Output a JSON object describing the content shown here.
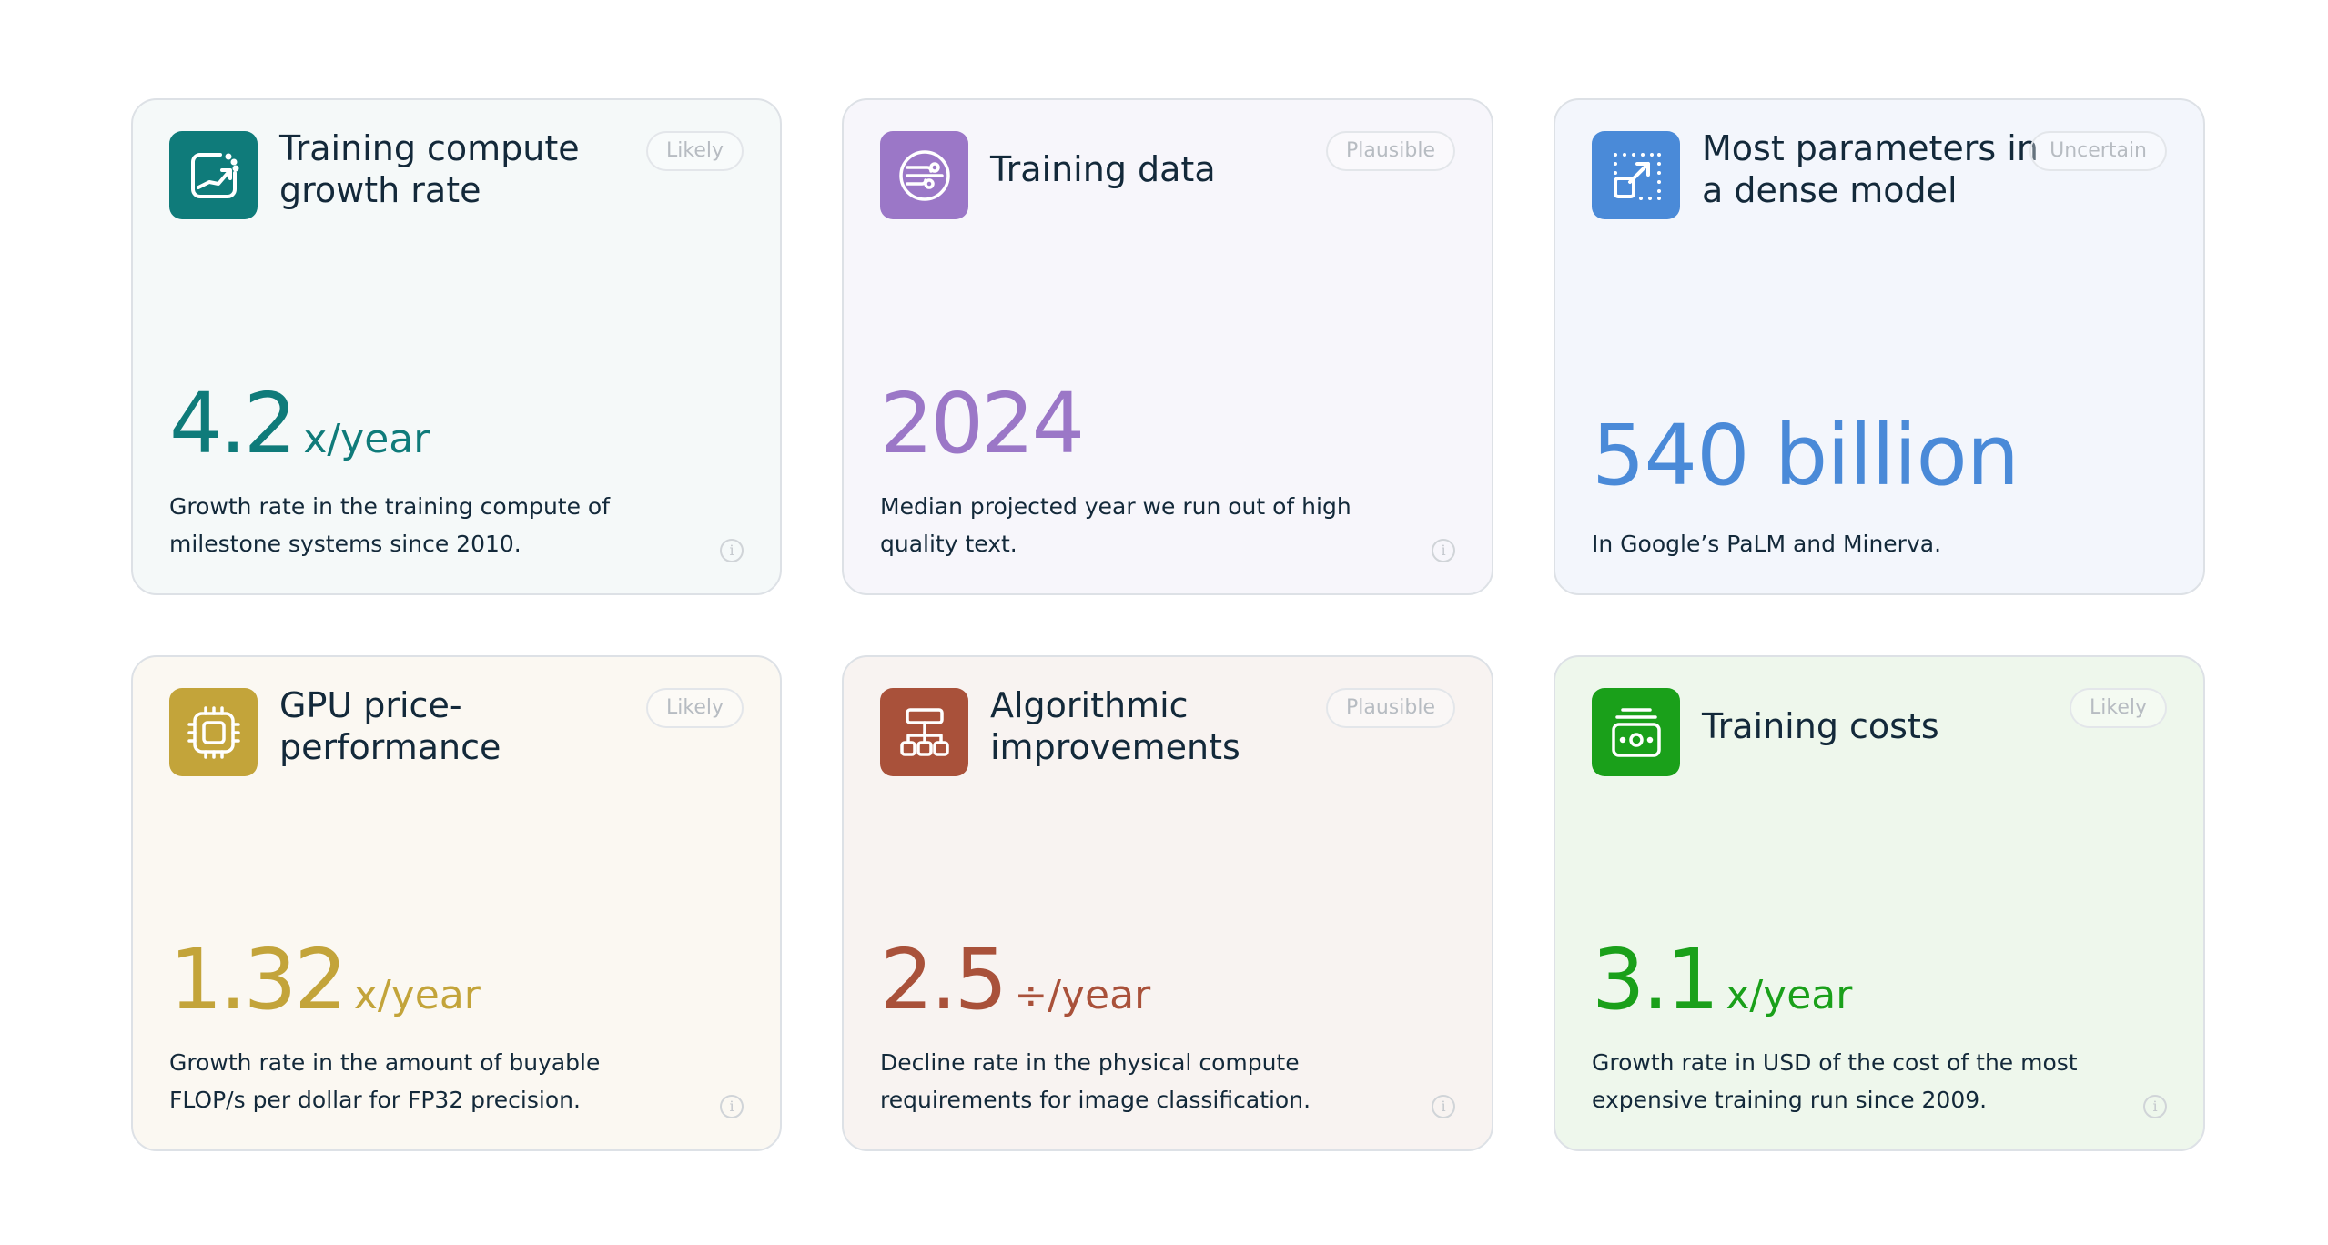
{
  "cards": [
    {
      "title": "Training compute growth rate",
      "badge": "Likely",
      "value": "4.2",
      "unit": "x/year",
      "description": "Growth rate in the training compute of milestone systems since 2010.",
      "icon": "growth-chart-icon",
      "accent": "#0f7b7a",
      "background": "#f5f9f9"
    },
    {
      "title": "Training data",
      "badge": "Plausible",
      "value": "2024",
      "unit": "",
      "description": "Median projected year we run out of high quality text.",
      "icon": "data-circuit-icon",
      "accent": "#9b77c7",
      "background": "#f7f6fb"
    },
    {
      "title": "Most parameters in a dense model",
      "badge": "Uncertain",
      "value": "540 billion",
      "unit": "",
      "description": "In Google’s PaLM and Minerva.",
      "icon": "expand-arrow-icon",
      "accent": "#4a8ad8",
      "background": "#f3f6fc"
    },
    {
      "title": "GPU price-performance",
      "badge": "Likely",
      "value": "1.32",
      "unit": "x/year",
      "description": "Growth rate in the amount of buyable FLOP/s per dollar for FP32 precision.",
      "icon": "chip-icon",
      "accent": "#c3a43a",
      "background": "#fbf8f2"
    },
    {
      "title": "Algorithmic improvements",
      "badge": "Plausible",
      "value": "2.5",
      "unit": "÷/year",
      "description": "Decline rate in the physical compute requirements for image classification.",
      "icon": "hierarchy-icon",
      "accent": "#a9513a",
      "background": "#f8f3f1"
    },
    {
      "title": "Training costs",
      "badge": "Likely",
      "value": "3.1",
      "unit": "x/year",
      "description": "Growth rate in USD of the cost of the most expensive training run since 2009.",
      "icon": "money-stack-icon",
      "accent": "#1aa01a",
      "background": "#eef7ec"
    }
  ]
}
